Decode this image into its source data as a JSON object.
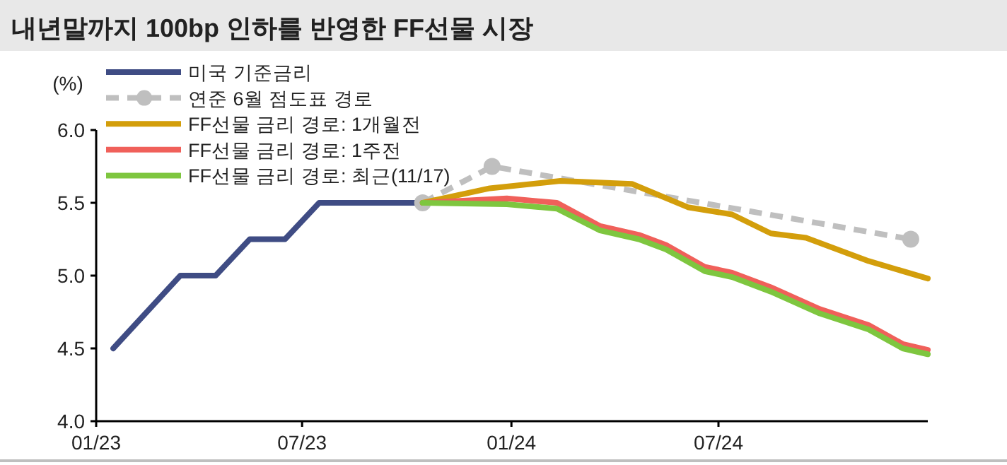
{
  "chart_data": {
    "type": "line",
    "title": "내년말까지 100bp 인하를 반영한 FF선물 시장",
    "ylabel": "(%)",
    "xlim": [
      "2023-01-01",
      "2025-01-01"
    ],
    "xticks": [
      {
        "value": "2023-01-01",
        "label": "01/23"
      },
      {
        "value": "2023-07-01",
        "label": "07/23"
      },
      {
        "value": "2024-01-01",
        "label": "01/24"
      },
      {
        "value": "2024-07-01",
        "label": "07/24"
      }
    ],
    "ylim": [
      4.0,
      6.0
    ],
    "yticks": [
      {
        "value": 4.0,
        "label": "4.0"
      },
      {
        "value": 4.5,
        "label": "4.5"
      },
      {
        "value": 5.0,
        "label": "5.0"
      },
      {
        "value": 5.5,
        "label": "5.5"
      },
      {
        "value": 6.0,
        "label": "6.0"
      }
    ],
    "grid": false,
    "legend": "top left",
    "series": [
      {
        "name": "미국 기준금리",
        "color": "#3f4c84",
        "line_style": "solid",
        "marker": "none",
        "x": [
          "2023-01-16",
          "2023-03-16",
          "2023-04-16",
          "2023-05-16",
          "2023-06-16",
          "2023-07-16",
          "2023-10-15"
        ],
        "values": [
          4.5,
          5.0,
          5.0,
          5.25,
          5.25,
          5.5,
          5.5
        ]
      },
      {
        "name": "연준 6월 점도표 경로",
        "color": "#bfbfbf",
        "line_style": "dashed",
        "marker": "circle",
        "x": [
          "2023-10-15",
          "2023-12-15",
          "2024-12-17"
        ],
        "values": [
          5.5,
          5.75,
          5.25
        ]
      },
      {
        "name": "FF선물 금리 경로: 1개월전",
        "color": "#d39e0b",
        "line_style": "solid",
        "marker": "none",
        "x": [
          "2023-10-15",
          "2023-12-13",
          "2024-02-13",
          "2024-04-16",
          "2024-06-04",
          "2024-07-13",
          "2024-08-16",
          "2024-09-16",
          "2024-11-10",
          "2025-01-01"
        ],
        "values": [
          5.5,
          5.6,
          5.65,
          5.63,
          5.47,
          5.42,
          5.29,
          5.26,
          5.1,
          4.98
        ]
      },
      {
        "name": "FF선물 금리 경로: 1주전",
        "color": "#f0605a",
        "line_style": "solid",
        "marker": "none",
        "x": [
          "2023-10-15",
          "2023-12-28",
          "2024-02-10",
          "2024-03-19",
          "2024-04-22",
          "2024-05-16",
          "2024-06-19",
          "2024-07-13",
          "2024-08-16",
          "2024-09-28",
          "2024-11-10",
          "2024-12-10",
          "2025-01-01"
        ],
        "values": [
          5.5,
          5.53,
          5.5,
          5.34,
          5.28,
          5.21,
          5.06,
          5.02,
          4.92,
          4.77,
          4.66,
          4.53,
          4.49
        ]
      },
      {
        "name": "FF선물 금리 경로: 최근(11/17)",
        "color": "#7ec63f",
        "line_style": "solid",
        "marker": "none",
        "x": [
          "2023-10-15",
          "2023-12-28",
          "2024-02-10",
          "2024-03-19",
          "2024-04-22",
          "2024-05-16",
          "2024-06-19",
          "2024-07-13",
          "2024-08-16",
          "2024-09-28",
          "2024-11-10",
          "2024-12-10",
          "2025-01-01"
        ],
        "values": [
          5.5,
          5.49,
          5.46,
          5.31,
          5.25,
          5.18,
          5.03,
          4.99,
          4.89,
          4.74,
          4.63,
          4.5,
          4.46
        ]
      }
    ]
  }
}
